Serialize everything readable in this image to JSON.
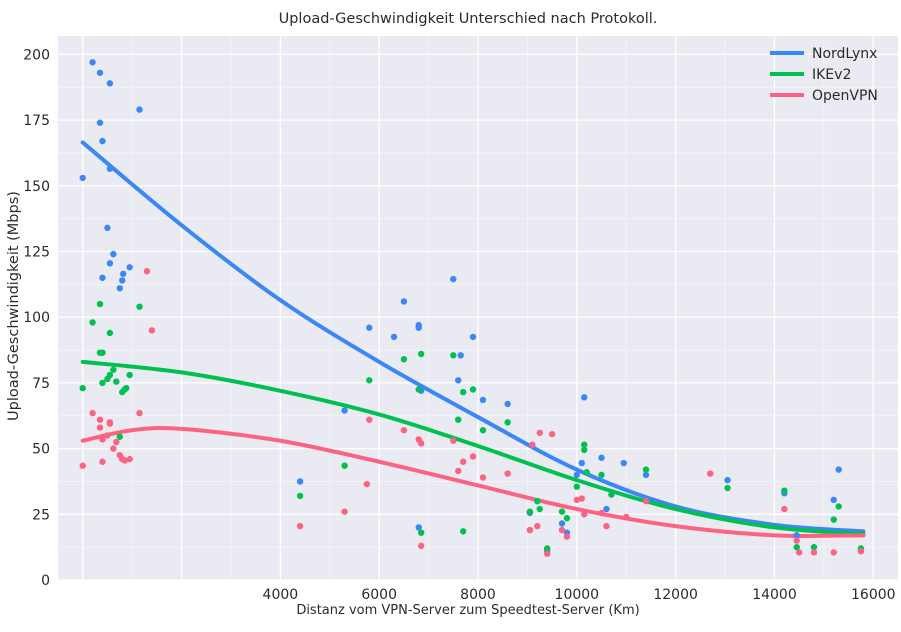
{
  "chart_data": {
    "type": "scatter",
    "title": "Upload-Geschwindigkeit Unterschied nach Protokoll.",
    "xlabel": "Distanz vom VPN-Server zum Speedtest-Server (Km)",
    "ylabel": "Upload-Geschwindigkeit (Mbps)",
    "xlim": [
      -500,
      16500
    ],
    "ylim": [
      0,
      207
    ],
    "xticks": [
      4000,
      6000,
      8000,
      10000,
      12000,
      14000,
      16000
    ],
    "yticks": [
      0,
      25,
      50,
      75,
      100,
      125,
      150,
      175,
      200
    ],
    "grid": true,
    "legend_position": "top-right",
    "series": [
      {
        "name": "NordLynx",
        "color": "#3b87f5",
        "trend": [
          [
            0,
            166.5
          ],
          [
            2000,
            135
          ],
          [
            4000,
            106.5
          ],
          [
            6000,
            83
          ],
          [
            8000,
            62
          ],
          [
            10000,
            42
          ],
          [
            12000,
            28
          ],
          [
            14000,
            21
          ],
          [
            15800,
            18.5
          ]
        ],
        "points": [
          [
            0,
            153
          ],
          [
            200,
            197
          ],
          [
            350,
            193
          ],
          [
            350,
            174
          ],
          [
            400,
            167
          ],
          [
            400,
            115
          ],
          [
            500,
            134
          ],
          [
            550,
            189
          ],
          [
            550,
            156.5
          ],
          [
            550,
            120.5
          ],
          [
            620,
            124
          ],
          [
            750,
            111
          ],
          [
            800,
            114
          ],
          [
            820,
            116.5
          ],
          [
            950,
            119
          ],
          [
            1150,
            179
          ],
          [
            4400,
            37.5
          ],
          [
            5300,
            64.5
          ],
          [
            5800,
            96
          ],
          [
            6300,
            92.5
          ],
          [
            6500,
            106
          ],
          [
            6800,
            97
          ],
          [
            6800,
            96
          ],
          [
            6800,
            20
          ],
          [
            6850,
            72
          ],
          [
            7500,
            114.5
          ],
          [
            7600,
            76
          ],
          [
            7650,
            85.5
          ],
          [
            7900,
            92.5
          ],
          [
            8100,
            68.5
          ],
          [
            8600,
            67
          ],
          [
            9050,
            25.5
          ],
          [
            9200,
            30
          ],
          [
            9400,
            11
          ],
          [
            9700,
            21.5
          ],
          [
            9800,
            18
          ],
          [
            10000,
            40
          ],
          [
            10100,
            44.5
          ],
          [
            10150,
            69.5
          ],
          [
            10500,
            46.5
          ],
          [
            10600,
            27
          ],
          [
            10950,
            44.5
          ],
          [
            11400,
            40
          ],
          [
            13050,
            38
          ],
          [
            14200,
            33
          ],
          [
            14450,
            17
          ],
          [
            15200,
            30.5
          ],
          [
            15300,
            42
          ],
          [
            15750,
            11
          ]
        ]
      },
      {
        "name": "IKEv2",
        "color": "#00c14f",
        "trend": [
          [
            0,
            83
          ],
          [
            2000,
            79
          ],
          [
            4000,
            72
          ],
          [
            6000,
            63
          ],
          [
            8000,
            51
          ],
          [
            10000,
            38
          ],
          [
            12000,
            27
          ],
          [
            14000,
            20
          ],
          [
            15800,
            17.5
          ]
        ],
        "points": [
          [
            0,
            73
          ],
          [
            200,
            98
          ],
          [
            350,
            105
          ],
          [
            350,
            86.5
          ],
          [
            400,
            86.5
          ],
          [
            400,
            75
          ],
          [
            500,
            76.5
          ],
          [
            550,
            94
          ],
          [
            550,
            78
          ],
          [
            620,
            80
          ],
          [
            680,
            75.5
          ],
          [
            750,
            54.5
          ],
          [
            800,
            71.5
          ],
          [
            850,
            72.5
          ],
          [
            880,
            73
          ],
          [
            950,
            78
          ],
          [
            1150,
            104
          ],
          [
            4400,
            32
          ],
          [
            5300,
            43.5
          ],
          [
            5800,
            76
          ],
          [
            6500,
            84
          ],
          [
            6800,
            72.5
          ],
          [
            6850,
            86
          ],
          [
            6850,
            18
          ],
          [
            7500,
            85.5
          ],
          [
            7600,
            61
          ],
          [
            7700,
            18.5
          ],
          [
            7700,
            71.5
          ],
          [
            7900,
            72.5
          ],
          [
            8100,
            57
          ],
          [
            8600,
            60
          ],
          [
            9050,
            26
          ],
          [
            9200,
            30
          ],
          [
            9250,
            27
          ],
          [
            9400,
            12
          ],
          [
            9700,
            26
          ],
          [
            9800,
            23.5
          ],
          [
            10000,
            35.5
          ],
          [
            10150,
            51.5
          ],
          [
            10150,
            49.5
          ],
          [
            10200,
            41
          ],
          [
            10500,
            40
          ],
          [
            10700,
            32.5
          ],
          [
            11400,
            42
          ],
          [
            13050,
            35
          ],
          [
            14200,
            34
          ],
          [
            14450,
            12.5
          ],
          [
            14800,
            12.5
          ],
          [
            15200,
            23
          ],
          [
            15300,
            28
          ],
          [
            15750,
            12
          ]
        ]
      },
      {
        "name": "OpenVPN",
        "color": "#fc6383",
        "trend": [
          [
            0,
            53
          ],
          [
            1000,
            57
          ],
          [
            2000,
            57.5
          ],
          [
            4000,
            53
          ],
          [
            6000,
            45
          ],
          [
            8000,
            36
          ],
          [
            10000,
            27
          ],
          [
            12000,
            20.5
          ],
          [
            14000,
            17
          ],
          [
            15800,
            17
          ]
        ],
        "points": [
          [
            0,
            43.5
          ],
          [
            200,
            63.5
          ],
          [
            350,
            61
          ],
          [
            350,
            58
          ],
          [
            400,
            53.5
          ],
          [
            400,
            45
          ],
          [
            500,
            55
          ],
          [
            550,
            60
          ],
          [
            550,
            59.5
          ],
          [
            620,
            50
          ],
          [
            680,
            52.5
          ],
          [
            750,
            47.5
          ],
          [
            800,
            46
          ],
          [
            850,
            45.5
          ],
          [
            950,
            46
          ],
          [
            1150,
            63.5
          ],
          [
            1300,
            117.5
          ],
          [
            1400,
            95
          ],
          [
            4400,
            20.5
          ],
          [
            5300,
            26
          ],
          [
            5750,
            36.5
          ],
          [
            5800,
            61
          ],
          [
            6500,
            57
          ],
          [
            6800,
            53.5
          ],
          [
            6850,
            52
          ],
          [
            6850,
            13
          ],
          [
            7500,
            53
          ],
          [
            7600,
            41.5
          ],
          [
            7700,
            45
          ],
          [
            7900,
            47
          ],
          [
            8100,
            39
          ],
          [
            8600,
            40.5
          ],
          [
            9050,
            19
          ],
          [
            9100,
            51.5
          ],
          [
            9200,
            20.5
          ],
          [
            9250,
            56
          ],
          [
            9400,
            10
          ],
          [
            9500,
            55.5
          ],
          [
            9700,
            19
          ],
          [
            9800,
            16.5
          ],
          [
            10000,
            30.5
          ],
          [
            10100,
            31
          ],
          [
            10150,
            25
          ],
          [
            10500,
            25.5
          ],
          [
            10600,
            20.5
          ],
          [
            11000,
            24
          ],
          [
            11400,
            30
          ],
          [
            12700,
            40.5
          ],
          [
            14200,
            27
          ],
          [
            14450,
            15
          ],
          [
            14500,
            10.5
          ],
          [
            14800,
            10.5
          ],
          [
            15200,
            10.5
          ],
          [
            15750,
            11
          ]
        ]
      }
    ]
  }
}
